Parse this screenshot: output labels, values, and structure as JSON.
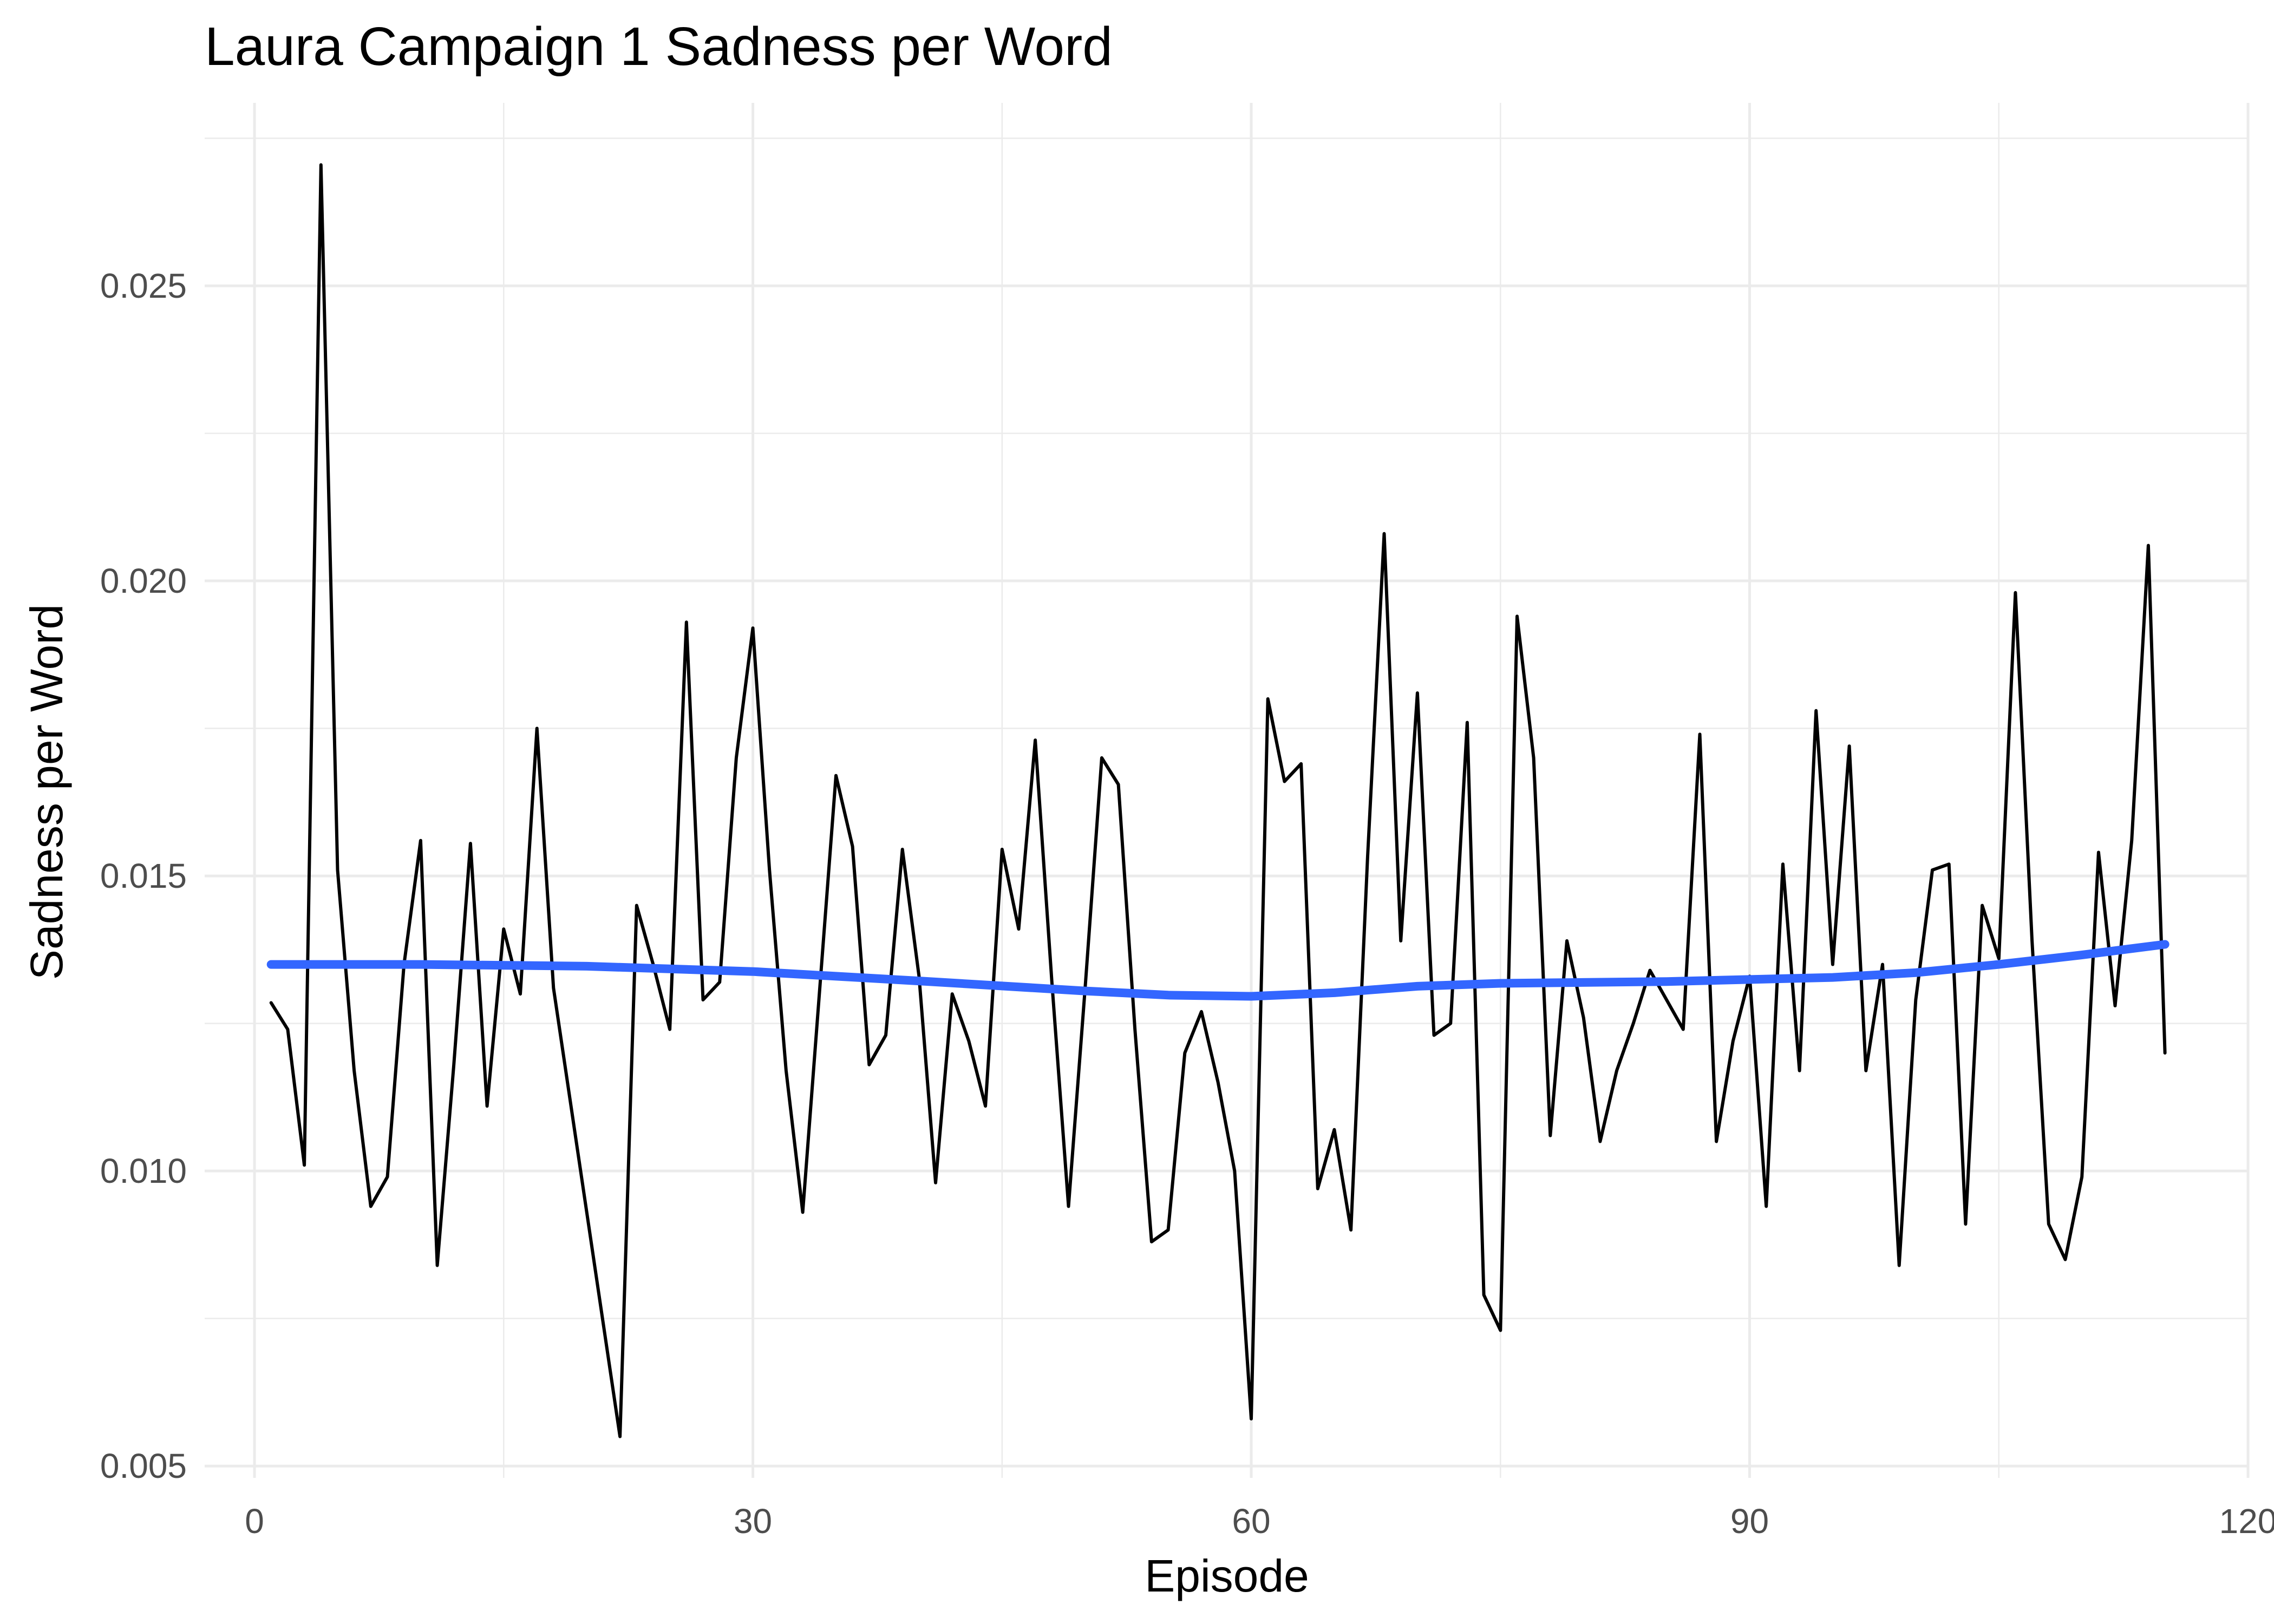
{
  "chart_data": {
    "type": "line",
    "title": "Laura Campaign 1 Sadness per Word",
    "xlabel": "Episode",
    "ylabel": "Sadness per Word",
    "xlim": [
      -3,
      120
    ],
    "ylim": [
      0.0048,
      0.0281
    ],
    "x_ticks": [
      0,
      30,
      60,
      90,
      120
    ],
    "x_tick_labels": [
      "0",
      "30",
      "60",
      "90",
      "120"
    ],
    "y_ticks": [
      0.005,
      0.01,
      0.015,
      0.02,
      0.025
    ],
    "y_tick_labels": [
      "0.005",
      "0.010",
      "0.015",
      "0.020",
      "0.025"
    ],
    "grid": true,
    "legend": "none",
    "series": [
      {
        "color": "#000000",
        "x": [
          1,
          2,
          3,
          4,
          5,
          6,
          7,
          8,
          9,
          10,
          11,
          12,
          13,
          14,
          15,
          16,
          17,
          18,
          19,
          20,
          21,
          22,
          23,
          24,
          25,
          26,
          27,
          28,
          29,
          30,
          31,
          32,
          33,
          34,
          35,
          36,
          37,
          38,
          39,
          40,
          41,
          42,
          43,
          44,
          45,
          46,
          47,
          48,
          49,
          50,
          51,
          52,
          53,
          54,
          55,
          56,
          57,
          58,
          59,
          60,
          61,
          62,
          63,
          64,
          65,
          66,
          67,
          68,
          69,
          70,
          71,
          72,
          73,
          74,
          75,
          76,
          77,
          78,
          79,
          80,
          81,
          82,
          83,
          84,
          85,
          86,
          87,
          88,
          89,
          90,
          91,
          92,
          93,
          94,
          95,
          96,
          97,
          98,
          99,
          100,
          101,
          102,
          103,
          104,
          105,
          106,
          107,
          108,
          109,
          110,
          111,
          112,
          113,
          114,
          115
        ],
        "values": [
          0.01285,
          0.0124,
          0.0101,
          0.02705,
          0.0151,
          0.0117,
          0.0094,
          0.0099,
          0.0135,
          0.0156,
          0.0084,
          0.0118,
          0.01555,
          0.0111,
          0.0141,
          0.013,
          0.0175,
          0.0131,
          0.0112,
          0.0093,
          0.0074,
          0.0055,
          0.0145,
          0.0135,
          0.0124,
          0.0193,
          0.0129,
          0.0132,
          0.017,
          0.0192,
          0.0151,
          0.0117,
          0.0093,
          0.013,
          0.0167,
          0.0155,
          0.0118,
          0.0123,
          0.01545,
          0.0133,
          0.0098,
          0.013,
          0.0122,
          0.0111,
          0.01545,
          0.0141,
          0.0173,
          0.0132,
          0.0094,
          0.0131,
          0.017,
          0.01655,
          0.0124,
          0.0088,
          0.009,
          0.012,
          0.0127,
          0.0115,
          0.01,
          0.0058,
          0.018,
          0.0166,
          0.0169,
          0.0097,
          0.0107,
          0.009,
          0.0153,
          0.0208,
          0.0139,
          0.0181,
          0.0123,
          0.0125,
          0.0176,
          0.0079,
          0.0073,
          0.0194,
          0.017,
          0.0106,
          0.0139,
          0.0126,
          0.0105,
          0.0117,
          0.0125,
          0.0134,
          0.0129,
          0.0124,
          0.0174,
          0.0105,
          0.0122,
          0.0133,
          0.0094,
          0.0152,
          0.0117,
          0.0178,
          0.0135,
          0.0172,
          0.0117,
          0.0135,
          0.0084,
          0.0129,
          0.0151,
          0.0152,
          0.0091,
          0.0145,
          0.0136,
          0.0198,
          0.0139,
          0.0091,
          0.0085,
          0.0099,
          0.0154,
          0.0128,
          0.0156,
          0.0206,
          0.012
        ]
      },
      {
        "color": "#3366FF",
        "x": [
          1,
          10,
          20,
          30,
          40,
          50,
          55,
          60,
          65,
          70,
          75,
          85,
          95,
          100,
          105,
          110,
          115
        ],
        "values": [
          0.0135,
          0.0135,
          0.01347,
          0.01338,
          0.01322,
          0.01305,
          0.01298,
          0.01296,
          0.01302,
          0.01313,
          0.01318,
          0.01321,
          0.01328,
          0.01336,
          0.0135,
          0.01366,
          0.01384
        ]
      }
    ]
  }
}
